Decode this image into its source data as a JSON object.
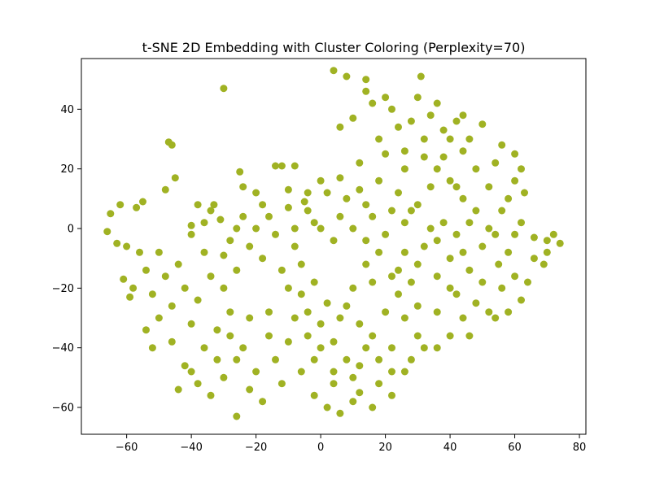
{
  "chart_data": {
    "type": "scatter",
    "title": "t-SNE 2D Embedding with Cluster Coloring (Perplexity=70)",
    "xlabel": "",
    "ylabel": "",
    "xlim": [
      -74,
      82
    ],
    "ylim": [
      -69,
      57
    ],
    "x_ticks": [
      -60,
      -40,
      -20,
      0,
      20,
      40,
      60,
      80
    ],
    "y_ticks": [
      40,
      20,
      0,
      -20,
      -40,
      -60
    ],
    "x_tick_labels": [
      "−60",
      "−40",
      "−20",
      "0",
      "20",
      "40",
      "60",
      "80"
    ],
    "y_tick_labels": [
      "40",
      "20",
      "0",
      "−20",
      "−40",
      "−60"
    ],
    "grid": false,
    "legend": "none",
    "point_color": "#a0b223",
    "series": [
      {
        "points": [
          [
            4,
            53
          ],
          [
            31,
            51
          ],
          [
            -30,
            47
          ],
          [
            8,
            51
          ],
          [
            14,
            50
          ],
          [
            10,
            37
          ],
          [
            -47,
            29
          ],
          [
            -46,
            28
          ],
          [
            -45,
            17
          ],
          [
            -48,
            13
          ],
          [
            -62,
            8
          ],
          [
            -65,
            5
          ],
          [
            -57,
            7
          ],
          [
            -55,
            9
          ],
          [
            -66,
            -1
          ],
          [
            -63,
            -5
          ],
          [
            -60,
            -6
          ],
          [
            -56,
            -8
          ],
          [
            -61,
            -17
          ],
          [
            -58,
            -20
          ],
          [
            -59,
            -23
          ],
          [
            -50,
            -8
          ],
          [
            -40,
            1
          ],
          [
            -38,
            8
          ],
          [
            -33,
            8
          ],
          [
            -25,
            19
          ],
          [
            -24,
            14
          ],
          [
            -14,
            21
          ],
          [
            -12,
            21
          ],
          [
            -8,
            21
          ],
          [
            -34,
            6
          ],
          [
            -31,
            3
          ],
          [
            -30,
            -9
          ],
          [
            -26,
            0
          ],
          [
            -18,
            8
          ],
          [
            -10,
            7
          ],
          [
            -5,
            9
          ],
          [
            -10,
            13
          ],
          [
            6,
            17
          ],
          [
            12,
            13
          ],
          [
            20,
            25
          ],
          [
            26,
            20
          ],
          [
            32,
            30
          ],
          [
            38,
            33
          ],
          [
            44,
            38
          ],
          [
            50,
            35
          ],
          [
            56,
            28
          ],
          [
            60,
            25
          ],
          [
            62,
            20
          ],
          [
            63,
            12
          ],
          [
            62,
            2
          ],
          [
            66,
            -3
          ],
          [
            70,
            -8
          ],
          [
            74,
            -5
          ],
          [
            72,
            -2
          ],
          [
            69,
            -12
          ],
          [
            64,
            -18
          ],
          [
            58,
            -28
          ],
          [
            54,
            -30
          ],
          [
            48,
            -25
          ],
          [
            44,
            -30
          ],
          [
            40,
            -36
          ],
          [
            36,
            -40
          ],
          [
            30,
            -36
          ],
          [
            26,
            -30
          ],
          [
            22,
            -40
          ],
          [
            18,
            -52
          ],
          [
            16,
            -60
          ],
          [
            12,
            -55
          ],
          [
            6,
            -62
          ],
          [
            4,
            -48
          ],
          [
            0,
            -40
          ],
          [
            -4,
            -28
          ],
          [
            -2,
            -18
          ],
          [
            2,
            -25
          ],
          [
            6,
            -30
          ],
          [
            10,
            -20
          ],
          [
            14,
            -12
          ],
          [
            18,
            -8
          ],
          [
            24,
            -14
          ],
          [
            28,
            -18
          ],
          [
            32,
            -6
          ],
          [
            36,
            -4
          ],
          [
            40,
            -10
          ],
          [
            46,
            -14
          ],
          [
            50,
            -18
          ],
          [
            55,
            -12
          ],
          [
            58,
            -8
          ],
          [
            52,
            0
          ],
          [
            48,
            6
          ],
          [
            44,
            10
          ],
          [
            40,
            16
          ],
          [
            36,
            20
          ],
          [
            30,
            8
          ],
          [
            26,
            2
          ],
          [
            22,
            6
          ],
          [
            16,
            4
          ],
          [
            10,
            0
          ],
          [
            4,
            -4
          ],
          [
            -2,
            2
          ],
          [
            -8,
            -6
          ],
          [
            -14,
            -2
          ],
          [
            -18,
            -10
          ],
          [
            -22,
            -6
          ],
          [
            -26,
            -14
          ],
          [
            -30,
            -20
          ],
          [
            -34,
            -16
          ],
          [
            -38,
            -24
          ],
          [
            -42,
            -20
          ],
          [
            -46,
            -26
          ],
          [
            -50,
            -30
          ],
          [
            -54,
            -34
          ],
          [
            -52,
            -40
          ],
          [
            -46,
            -38
          ],
          [
            -42,
            -46
          ],
          [
            -38,
            -52
          ],
          [
            -34,
            -56
          ],
          [
            -30,
            -50
          ],
          [
            -26,
            -44
          ],
          [
            -22,
            -54
          ],
          [
            -18,
            -58
          ],
          [
            -26,
            -63
          ],
          [
            -20,
            -48
          ],
          [
            -14,
            -44
          ],
          [
            -10,
            -38
          ],
          [
            -12,
            -52
          ],
          [
            -16,
            -36
          ],
          [
            -22,
            -30
          ],
          [
            -28,
            -28
          ],
          [
            -32,
            -34
          ],
          [
            -36,
            -40
          ],
          [
            -40,
            -32
          ],
          [
            -44,
            -12
          ],
          [
            -36,
            -8
          ],
          [
            -28,
            -4
          ],
          [
            -20,
            0
          ],
          [
            -12,
            -14
          ],
          [
            -6,
            -22
          ],
          [
            0,
            -32
          ],
          [
            4,
            -38
          ],
          [
            8,
            -44
          ],
          [
            12,
            -46
          ],
          [
            16,
            -36
          ],
          [
            20,
            -28
          ],
          [
            24,
            -22
          ],
          [
            28,
            -44
          ],
          [
            32,
            -40
          ],
          [
            36,
            -28
          ],
          [
            42,
            -22
          ],
          [
            46,
            -36
          ],
          [
            52,
            -28
          ],
          [
            60,
            -16
          ],
          [
            66,
            -10
          ],
          [
            70,
            -4
          ],
          [
            60,
            -2
          ],
          [
            56,
            6
          ],
          [
            52,
            14
          ],
          [
            48,
            20
          ],
          [
            44,
            26
          ],
          [
            40,
            30
          ],
          [
            34,
            38
          ],
          [
            28,
            36
          ],
          [
            22,
            40
          ],
          [
            16,
            42
          ],
          [
            14,
            46
          ],
          [
            20,
            44
          ],
          [
            24,
            34
          ],
          [
            18,
            30
          ],
          [
            12,
            22
          ],
          [
            8,
            10
          ],
          [
            2,
            12
          ],
          [
            -4,
            6
          ],
          [
            -8,
            0
          ],
          [
            14,
            -4
          ],
          [
            20,
            -2
          ],
          [
            34,
            14
          ],
          [
            38,
            2
          ],
          [
            42,
            -2
          ],
          [
            56,
            -20
          ],
          [
            62,
            -24
          ],
          [
            30,
            -26
          ],
          [
            10,
            -58
          ],
          [
            -2,
            -56
          ],
          [
            -6,
            -48
          ],
          [
            2,
            -60
          ],
          [
            22,
            -56
          ],
          [
            26,
            -48
          ],
          [
            6,
            34
          ],
          [
            0,
            16
          ],
          [
            -4,
            12
          ],
          [
            -36,
            2
          ],
          [
            -40,
            -2
          ],
          [
            -24,
            4
          ],
          [
            -16,
            4
          ],
          [
            -20,
            12
          ],
          [
            -48,
            -16
          ],
          [
            -52,
            -22
          ],
          [
            -54,
            -14
          ],
          [
            -44,
            -54
          ],
          [
            -40,
            -48
          ],
          [
            -32,
            -44
          ],
          [
            -28,
            -36
          ],
          [
            -24,
            -40
          ],
          [
            -16,
            -28
          ],
          [
            -8,
            -30
          ],
          [
            -4,
            -36
          ],
          [
            8,
            -26
          ],
          [
            12,
            -32
          ],
          [
            16,
            -18
          ],
          [
            22,
            -16
          ],
          [
            26,
            -8
          ],
          [
            30,
            -12
          ],
          [
            36,
            -16
          ],
          [
            40,
            -20
          ],
          [
            44,
            -8
          ],
          [
            50,
            -6
          ],
          [
            54,
            -2
          ],
          [
            58,
            10
          ],
          [
            60,
            16
          ],
          [
            54,
            22
          ],
          [
            46,
            30
          ],
          [
            42,
            36
          ],
          [
            36,
            42
          ],
          [
            30,
            44
          ],
          [
            26,
            26
          ],
          [
            32,
            24
          ],
          [
            38,
            24
          ],
          [
            42,
            14
          ],
          [
            46,
            2
          ],
          [
            34,
            0
          ],
          [
            28,
            6
          ],
          [
            24,
            12
          ],
          [
            18,
            16
          ],
          [
            14,
            8
          ],
          [
            6,
            4
          ],
          [
            0,
            0
          ],
          [
            -6,
            -12
          ],
          [
            -10,
            -20
          ],
          [
            -2,
            -44
          ],
          [
            4,
            -52
          ],
          [
            10,
            -50
          ],
          [
            14,
            -40
          ],
          [
            18,
            -44
          ],
          [
            22,
            -48
          ]
        ]
      }
    ]
  }
}
